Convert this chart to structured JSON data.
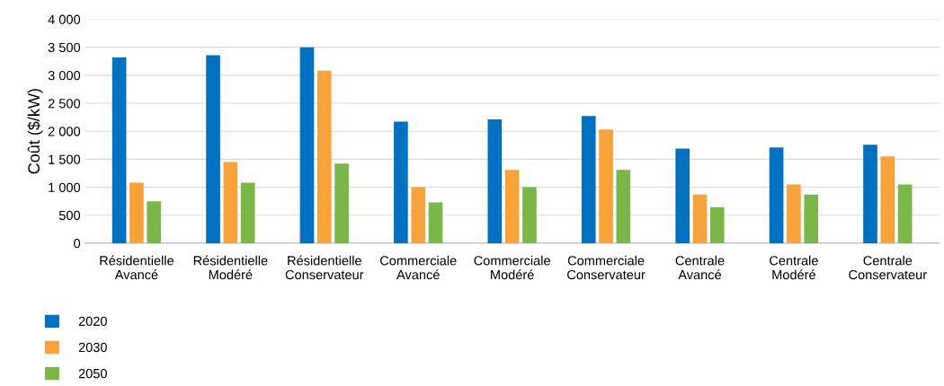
{
  "chart_data": {
    "type": "bar",
    "ylabel": "Coût ($/kW)",
    "categories": [
      "Résidentielle\nAvancé",
      "Résidentielle\nModéré",
      "Résidentielle\nConservateur",
      "Commerciale\nAvancé",
      "Commerciale\nModéré",
      "Commerciale\nConservateur",
      "Centrale\nAvancé",
      "Centrale\nModéré",
      "Centrale\nConservateur"
    ],
    "series": [
      {
        "name": "2020",
        "color": "#0070c0",
        "values": [
          3320,
          3360,
          3500,
          2170,
          2210,
          2270,
          1690,
          1710,
          1760
        ]
      },
      {
        "name": "2030",
        "color": "#f7a23b",
        "values": [
          1080,
          1450,
          3080,
          1000,
          1310,
          2030,
          870,
          1050,
          1550
        ]
      },
      {
        "name": "2050",
        "color": "#7ab648",
        "values": [
          750,
          1080,
          1420,
          730,
          1000,
          1310,
          645,
          870,
          1050
        ]
      }
    ],
    "ylim": [
      0,
      4000
    ],
    "yticks": [
      0,
      500,
      {
        "value": 1000,
        "label": "1 000"
      },
      {
        "value": 1500,
        "label": "1 500"
      },
      {
        "value": 2000,
        "label": "2 000"
      },
      {
        "value": 2500,
        "label": "2 500"
      },
      {
        "value": 3000,
        "label": "3 000"
      },
      {
        "value": 3500,
        "label": "3 500"
      },
      {
        "value": 4000,
        "label": "4 000"
      }
    ],
    "grid": "y",
    "legend": "bottom left"
  }
}
